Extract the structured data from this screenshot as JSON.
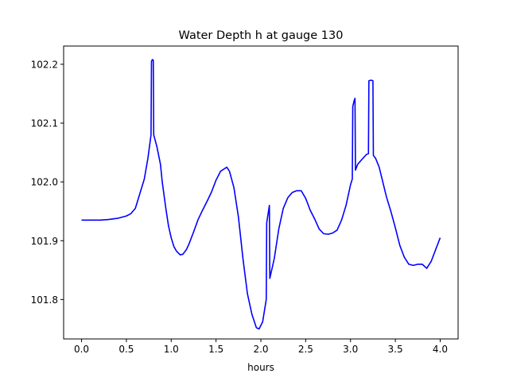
{
  "chart_data": {
    "type": "line",
    "title": "Water Depth h at gauge 130",
    "xlabel": "hours",
    "ylabel": "",
    "xlim": [
      -0.2,
      4.2
    ],
    "ylim": [
      101.733,
      102.231
    ],
    "xticks": [
      0.0,
      0.5,
      1.0,
      1.5,
      2.0,
      2.5,
      3.0,
      3.5,
      4.0
    ],
    "xtick_labels": [
      "0.0",
      "0.5",
      "1.0",
      "1.5",
      "2.0",
      "2.5",
      "3.0",
      "3.5",
      "4.0"
    ],
    "yticks": [
      101.8,
      101.9,
      102.0,
      102.1,
      102.2
    ],
    "ytick_labels": [
      "101.8",
      "101.9",
      "102.0",
      "102.1",
      "102.2"
    ],
    "grid": false,
    "legend": "none",
    "series": [
      {
        "color": "#0000ff",
        "points": [
          [
            0.0,
            101.935
          ],
          [
            0.2,
            101.935
          ],
          [
            0.3,
            101.936
          ],
          [
            0.4,
            101.938
          ],
          [
            0.5,
            101.942
          ],
          [
            0.55,
            101.946
          ],
          [
            0.6,
            101.955
          ],
          [
            0.65,
            101.98
          ],
          [
            0.7,
            102.005
          ],
          [
            0.74,
            102.04
          ],
          [
            0.775,
            102.08
          ],
          [
            0.78,
            102.205
          ],
          [
            0.79,
            102.208
          ],
          [
            0.8,
            102.207
          ],
          [
            0.805,
            102.08
          ],
          [
            0.84,
            102.06
          ],
          [
            0.88,
            102.03
          ],
          [
            0.9,
            102.0
          ],
          [
            0.94,
            101.955
          ],
          [
            0.97,
            101.925
          ],
          [
            1.0,
            101.905
          ],
          [
            1.03,
            101.89
          ],
          [
            1.06,
            101.882
          ],
          [
            1.1,
            101.876
          ],
          [
            1.13,
            101.877
          ],
          [
            1.17,
            101.885
          ],
          [
            1.2,
            101.895
          ],
          [
            1.25,
            101.915
          ],
          [
            1.3,
            101.936
          ],
          [
            1.35,
            101.952
          ],
          [
            1.4,
            101.967
          ],
          [
            1.45,
            101.983
          ],
          [
            1.5,
            102.003
          ],
          [
            1.55,
            102.018
          ],
          [
            1.62,
            102.025
          ],
          [
            1.65,
            102.018
          ],
          [
            1.7,
            101.99
          ],
          [
            1.75,
            101.94
          ],
          [
            1.8,
            101.87
          ],
          [
            1.85,
            101.81
          ],
          [
            1.9,
            101.775
          ],
          [
            1.95,
            101.752
          ],
          [
            1.98,
            101.75
          ],
          [
            2.02,
            101.762
          ],
          [
            2.06,
            101.8
          ],
          [
            2.065,
            101.93
          ],
          [
            2.09,
            101.955
          ],
          [
            2.095,
            101.96
          ],
          [
            2.1,
            101.836
          ],
          [
            2.15,
            101.87
          ],
          [
            2.2,
            101.92
          ],
          [
            2.25,
            101.955
          ],
          [
            2.3,
            101.973
          ],
          [
            2.35,
            101.982
          ],
          [
            2.4,
            101.985
          ],
          [
            2.45,
            101.985
          ],
          [
            2.5,
            101.972
          ],
          [
            2.55,
            101.952
          ],
          [
            2.6,
            101.937
          ],
          [
            2.65,
            101.92
          ],
          [
            2.7,
            101.912
          ],
          [
            2.75,
            101.911
          ],
          [
            2.8,
            101.913
          ],
          [
            2.85,
            101.918
          ],
          [
            2.9,
            101.935
          ],
          [
            2.95,
            101.96
          ],
          [
            3.0,
            101.995
          ],
          [
            3.02,
            102.005
          ],
          [
            3.025,
            102.128
          ],
          [
            3.04,
            102.138
          ],
          [
            3.05,
            102.142
          ],
          [
            3.055,
            102.02
          ],
          [
            3.08,
            102.03
          ],
          [
            3.12,
            102.037
          ],
          [
            3.18,
            102.047
          ],
          [
            3.2,
            102.048
          ],
          [
            3.205,
            102.172
          ],
          [
            3.23,
            102.173
          ],
          [
            3.25,
            102.172
          ],
          [
            3.255,
            102.045
          ],
          [
            3.28,
            102.04
          ],
          [
            3.32,
            102.025
          ],
          [
            3.36,
            102.0
          ],
          [
            3.4,
            101.975
          ],
          [
            3.45,
            101.95
          ],
          [
            3.5,
            101.922
          ],
          [
            3.55,
            101.892
          ],
          [
            3.6,
            101.872
          ],
          [
            3.65,
            101.86
          ],
          [
            3.7,
            101.858
          ],
          [
            3.75,
            101.86
          ],
          [
            3.8,
            101.86
          ],
          [
            3.85,
            101.853
          ],
          [
            3.9,
            101.865
          ],
          [
            3.95,
            101.885
          ],
          [
            4.0,
            101.905
          ]
        ]
      }
    ]
  }
}
